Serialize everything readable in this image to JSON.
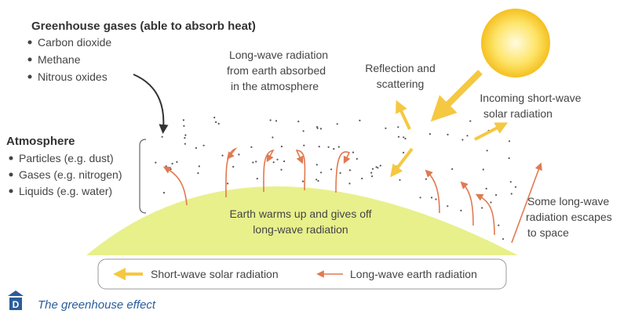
{
  "greenhouse_gases": {
    "title": "Greenhouse gases (able to absorb heat)",
    "items": [
      "Carbon dioxide",
      "Methane",
      "Nitrous oxides"
    ]
  },
  "atmosphere": {
    "title": "Atmosphere",
    "items": [
      "Particles (e.g. dust)",
      "Gases (e.g. nitrogen)",
      "Liquids (e.g. water)"
    ]
  },
  "labels": {
    "absorbed": [
      "Long-wave radiation",
      "from earth absorbed",
      "in the atmosphere"
    ],
    "reflection": [
      "Reflection and",
      "scattering"
    ],
    "incoming": [
      "Incoming short-wave",
      "solar radiation"
    ],
    "earth": [
      "Earth warms up and gives off",
      "long-wave radiation"
    ],
    "escapes": [
      "Some long-wave",
      "radiation escapes",
      "to space"
    ]
  },
  "legend": [
    "Short-wave solar radiation",
    "Long-wave earth radiation"
  ],
  "caption": {
    "letter": "D",
    "text": "The greenhouse effect"
  }
}
